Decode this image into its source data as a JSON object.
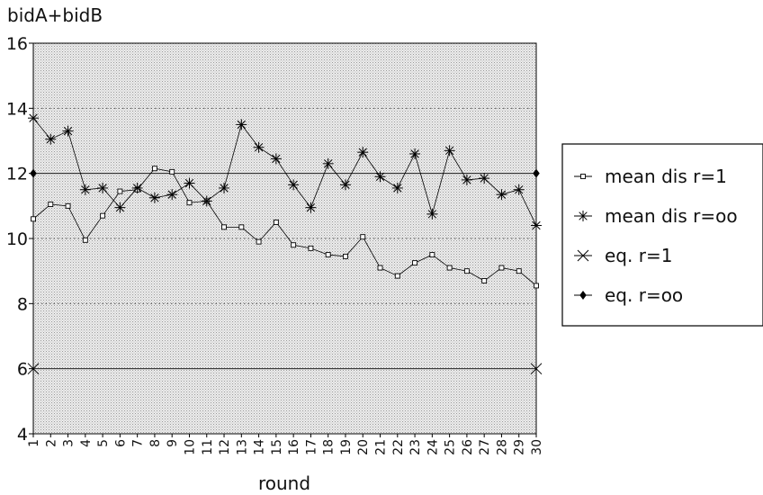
{
  "chart_data": {
    "type": "line",
    "ylabel": "bidA+bidB",
    "xlabel": "round",
    "ylim": [
      4,
      16
    ],
    "yticks": [
      4,
      6,
      8,
      10,
      12,
      14,
      16
    ],
    "x": [
      1,
      2,
      3,
      4,
      5,
      6,
      7,
      8,
      9,
      10,
      11,
      12,
      13,
      14,
      15,
      16,
      17,
      18,
      19,
      20,
      21,
      22,
      23,
      24,
      25,
      26,
      27,
      28,
      29,
      30
    ],
    "grid": "dotted horizontal at 8, 10, 14; stippled plot background",
    "legend_position": "right",
    "series": [
      {
        "name": "mean dis r=1",
        "marker": "open-square",
        "color": "#000000",
        "values": [
          10.6,
          11.05,
          11.0,
          9.95,
          10.7,
          11.45,
          11.5,
          12.15,
          12.05,
          11.1,
          11.15,
          10.35,
          10.35,
          9.9,
          10.5,
          9.8,
          9.7,
          9.5,
          9.45,
          10.05,
          9.1,
          8.85,
          9.25,
          9.5,
          9.1,
          9.0,
          8.7,
          9.1,
          9.0,
          8.55
        ]
      },
      {
        "name": "mean dis r=oo",
        "marker": "asterisk",
        "color": "#000000",
        "values": [
          13.7,
          13.05,
          13.3,
          11.5,
          11.55,
          10.95,
          11.55,
          11.25,
          11.35,
          11.7,
          11.15,
          11.55,
          13.5,
          12.8,
          12.45,
          11.65,
          10.95,
          12.3,
          11.65,
          12.65,
          11.9,
          11.55,
          12.6,
          10.75,
          12.7,
          11.8,
          11.85,
          11.35,
          11.5,
          10.4
        ]
      },
      {
        "name": "eq. r=1",
        "marker": "x",
        "color": "#000000",
        "values": [
          6,
          6
        ],
        "x": [
          1,
          30
        ],
        "style": "horizontal reference line"
      },
      {
        "name": "eq. r=oo",
        "marker": "filled-diamond",
        "color": "#000000",
        "values": [
          12,
          12
        ],
        "x": [
          1,
          30
        ],
        "style": "horizontal reference line"
      }
    ]
  }
}
